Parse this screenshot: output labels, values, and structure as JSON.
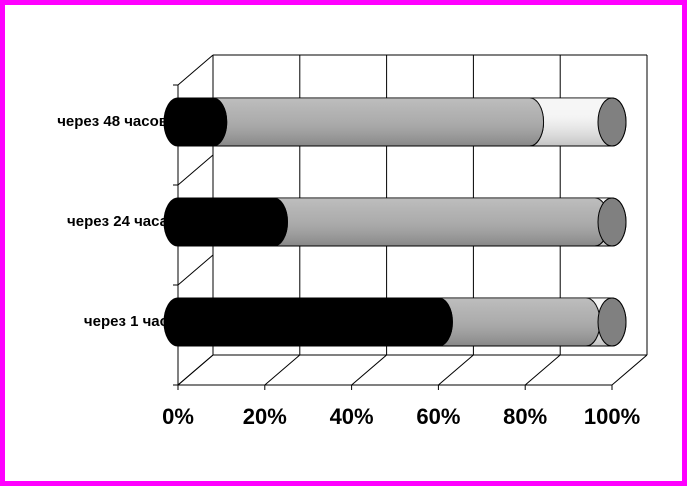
{
  "chart_data": {
    "type": "bar",
    "categories": [
      "через 1 час",
      "через 24 часа",
      "через 48 часов"
    ],
    "series": [
      {
        "color": "#000000",
        "values": [
          60,
          22,
          8
        ]
      },
      {
        "color": "#a8a8a8",
        "values": [
          34,
          74,
          73
        ]
      },
      {
        "color": "#f4f4f4",
        "values": [
          6,
          4,
          19
        ]
      }
    ],
    "xlim": [
      0,
      100
    ],
    "xticks": [
      {
        "value": 0,
        "label": "0%"
      },
      {
        "value": 20,
        "label": "20%"
      },
      {
        "value": 40,
        "label": "40%"
      },
      {
        "value": 60,
        "label": "60%"
      },
      {
        "value": 80,
        "label": "80%"
      },
      {
        "value": 100,
        "label": "100%"
      }
    ],
    "grid": true
  }
}
